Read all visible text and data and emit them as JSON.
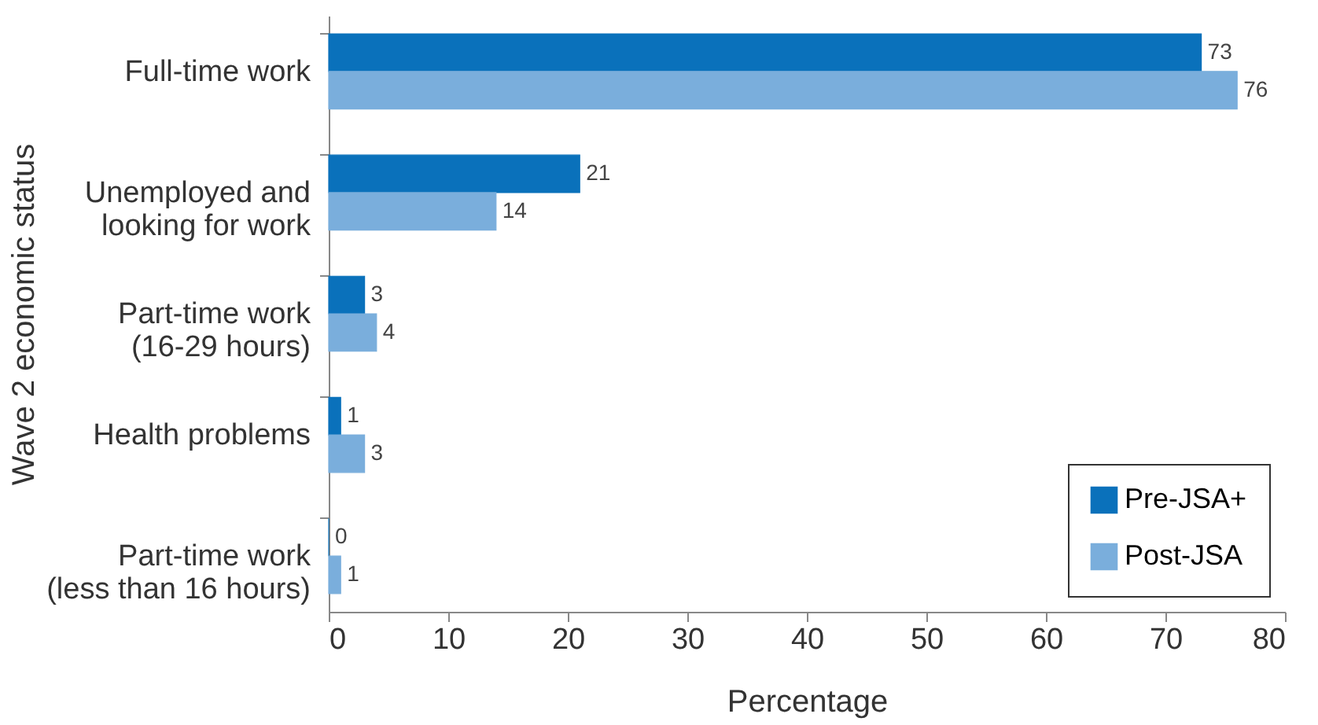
{
  "chart_data": {
    "type": "bar",
    "orientation": "horizontal",
    "xlabel": "Percentage",
    "ylabel": "Wave 2 economic status",
    "categories": [
      "Full-time work",
      "Unemployed and\nlooking for work",
      "Part-time work\n(16-29 hours)",
      "Health problems",
      "Part-time work\n(less than 16 hours)"
    ],
    "series": [
      {
        "name": "Pre-JSA+",
        "color": "#0a71bb",
        "values": [
          73,
          21,
          3,
          1,
          0
        ]
      },
      {
        "name": "Post-JSA",
        "color": "#7aaedc",
        "values": [
          76,
          14,
          4,
          3,
          1
        ]
      }
    ],
    "xlim": [
      0,
      80
    ],
    "xticks": [
      0,
      10,
      20,
      30,
      40,
      50,
      60,
      70,
      80
    ],
    "data_labels": true,
    "grid": false,
    "legend": "bottom right"
  }
}
